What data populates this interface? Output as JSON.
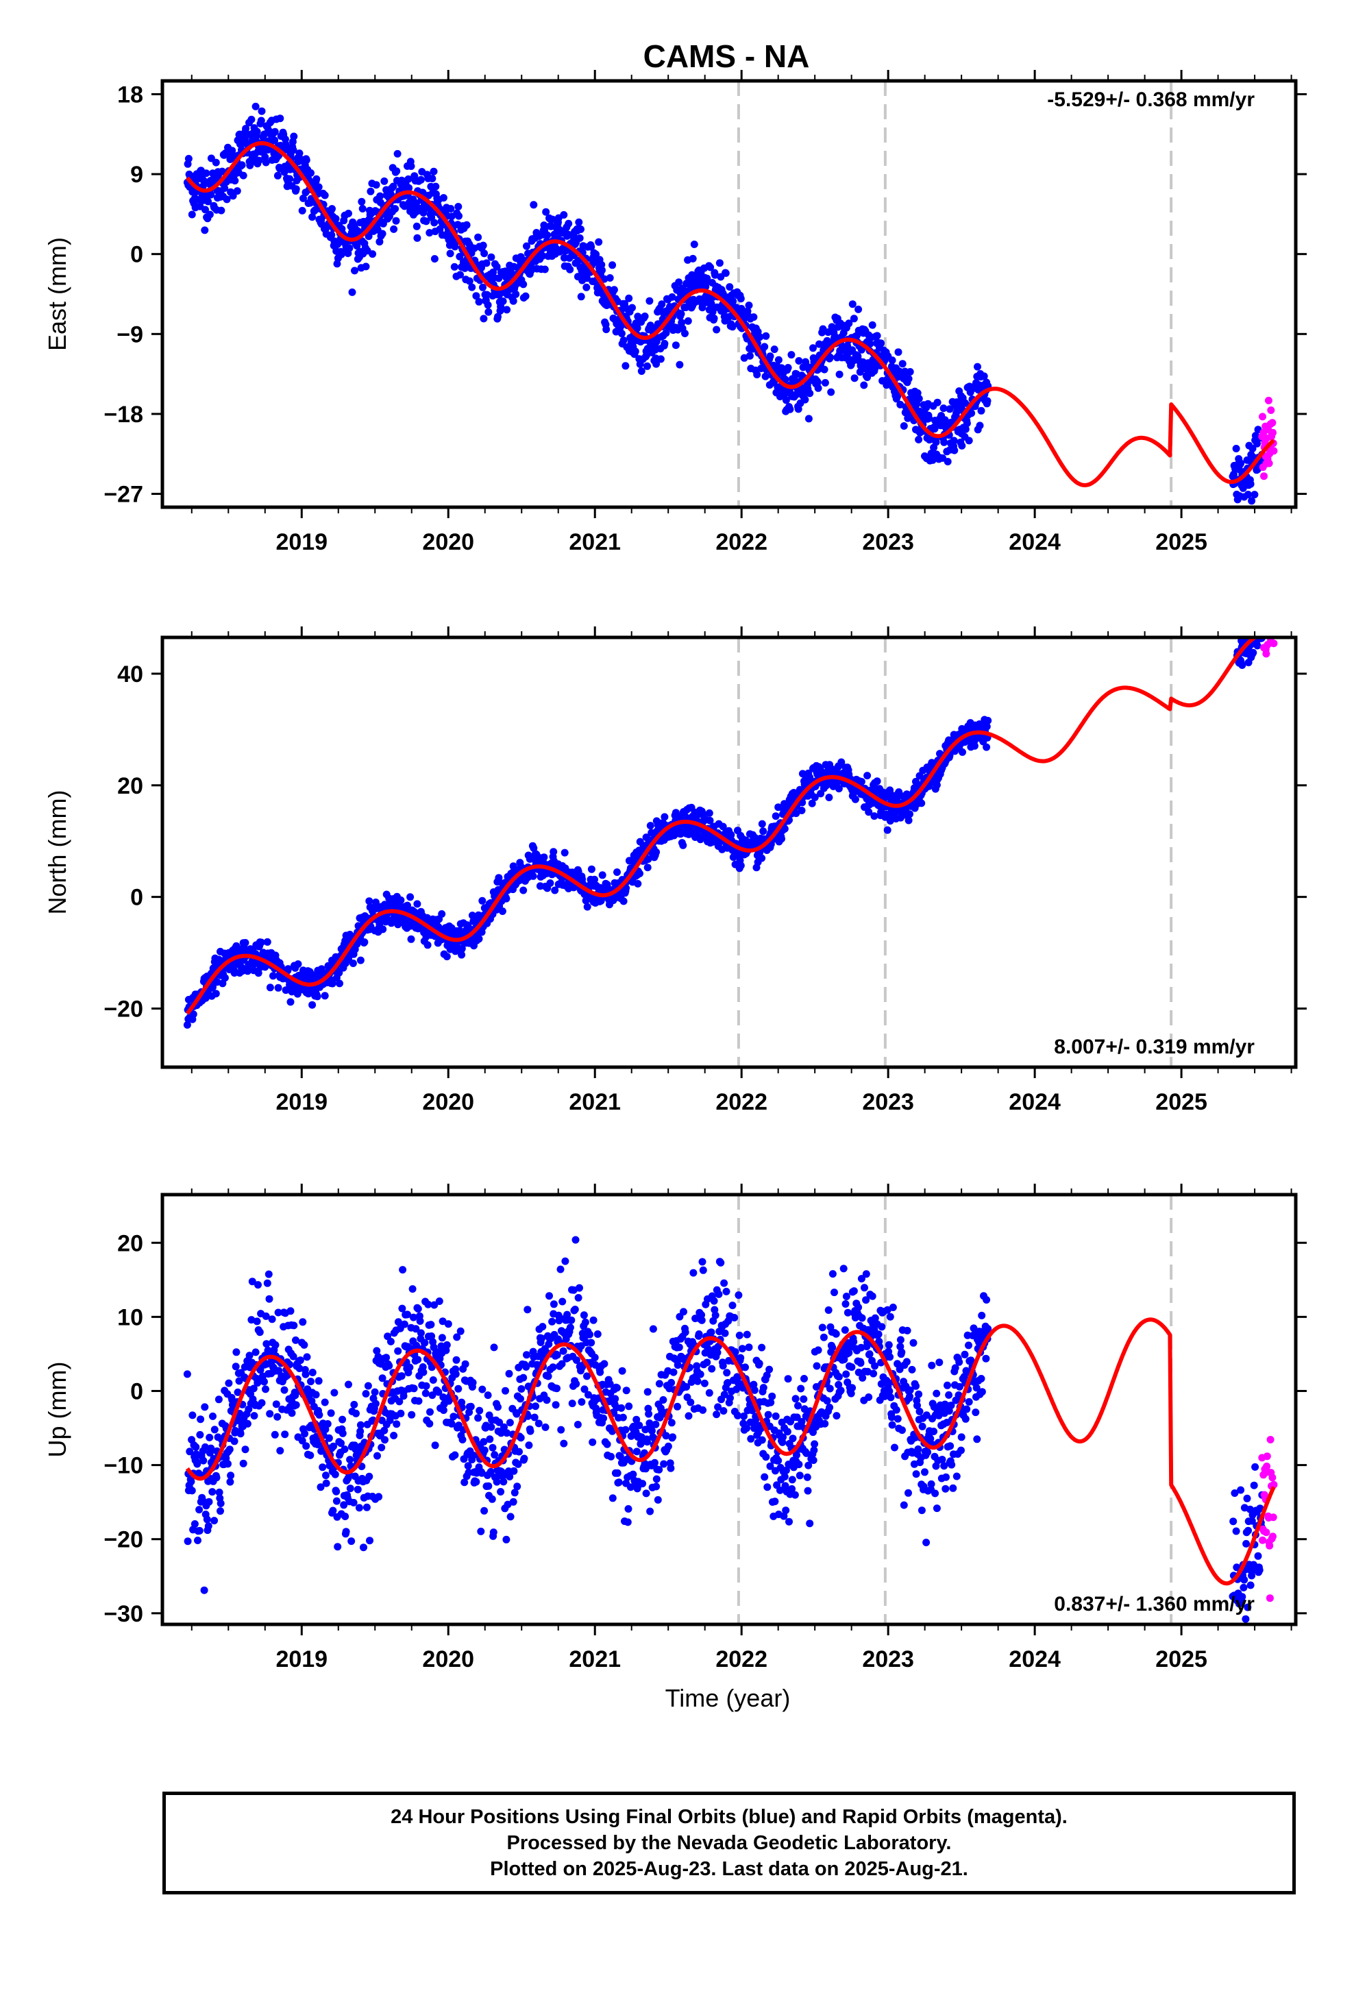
{
  "title": "CAMS - NA",
  "xlabel": "Time (year)",
  "footer": {
    "line1": "24 Hour Positions Using Final Orbits (blue) and Rapid Orbits (magenta).",
    "line2": "Processed by the Nevada Geodetic Laboratory.",
    "line3": "Plotted on 2025-Aug-23. Last data on 2025-Aug-21."
  },
  "colors": {
    "final": "#0000ff",
    "rapid": "#ff00ff",
    "model": "#ff0000",
    "equipment_change": "#c8c8c8",
    "axes": "#000000"
  },
  "chart_data": [
    {
      "type": "scatter",
      "ylabel": "East (mm)",
      "rate_label": "-5.529+/- 0.368 mm/yr",
      "xlim": [
        2018.05,
        2025.78
      ],
      "ylim": [
        -28.5,
        19.5
      ],
      "x_ticks": [
        2019,
        2020,
        2021,
        2022,
        2023,
        2024,
        2025
      ],
      "y_ticks": [
        18,
        9,
        0,
        -9,
        -18,
        -27
      ],
      "equipment_changes": [
        2021.98,
        2022.98,
        2024.93
      ],
      "data_span": [
        2018.22,
        2023.68
      ],
      "rapid_span": [
        2025.55,
        2025.63
      ],
      "model": {
        "trend_at_2018_2": 12.0,
        "rate_mm_per_yr": -5.529,
        "annual_amplitude": 3.8,
        "annual_peak": 2018.8,
        "semiannual_amplitude": 0.4,
        "semiannual_peak": 2018.6,
        "offset_at_2024_93": 5.9
      },
      "scatter_sd": 1.7,
      "series": [
        {
          "name": "Final Orbits",
          "x_range": [
            2018.22,
            2023.68
          ],
          "n_points": 1700
        },
        {
          "name": "Rapid Orbits",
          "x_range": [
            2025.55,
            2025.63
          ],
          "n_points": 26
        },
        {
          "name": "Model",
          "x_range": [
            2018.22,
            2025.63
          ]
        }
      ],
      "extra_data": [
        {
          "x_range": [
            2025.35,
            2025.55
          ],
          "n_points": 60
        }
      ]
    },
    {
      "type": "scatter",
      "ylabel": "North (mm)",
      "rate_label": "8.007+/- 0.319 mm/yr",
      "xlim": [
        2018.05,
        2025.78
      ],
      "ylim": [
        -30.5,
        46.5
      ],
      "x_ticks": [
        2019,
        2020,
        2021,
        2022,
        2023,
        2024,
        2025
      ],
      "y_ticks": [
        40,
        20,
        0,
        -20
      ],
      "equipment_changes": [
        2021.98,
        2022.98,
        2024.93
      ],
      "data_span": [
        2018.22,
        2023.68
      ],
      "rapid_span": [
        2025.55,
        2025.63
      ],
      "model": {
        "trend_at_2018_2": -18.0,
        "rate_mm_per_yr": 8.007,
        "annual_amplitude": 4.5,
        "annual_peak": 2018.58,
        "semiannual_amplitude": 0.3,
        "semiannual_peak": 2018.4,
        "offset_at_2024_93": 2.0
      },
      "scatter_sd": 1.4,
      "series": [
        {
          "name": "Final Orbits",
          "x_range": [
            2018.22,
            2023.68
          ],
          "n_points": 1700
        },
        {
          "name": "Rapid Orbits",
          "x_range": [
            2025.55,
            2025.63
          ],
          "n_points": 26
        },
        {
          "name": "Model",
          "x_range": [
            2018.22,
            2025.63
          ]
        }
      ],
      "extra_data": [
        {
          "x_range": [
            2025.38,
            2025.55
          ],
          "n_points": 60
        }
      ]
    },
    {
      "type": "scatter",
      "ylabel": "Up (mm)",
      "rate_label": "0.837+/- 1.360 mm/yr",
      "xlim": [
        2018.05,
        2025.78
      ],
      "ylim": [
        -31.5,
        26.5
      ],
      "x_ticks": [
        2019,
        2020,
        2021,
        2022,
        2023,
        2024,
        2025
      ],
      "y_ticks": [
        20,
        10,
        0,
        -10,
        -20,
        -30
      ],
      "equipment_changes": [
        2021.98,
        2022.98,
        2024.93
      ],
      "data_span": [
        2018.22,
        2023.68
      ],
      "rapid_span": [
        2025.55,
        2025.63
      ],
      "model": {
        "trend_at_2018_2": -3.5,
        "rate_mm_per_yr": 0.837,
        "annual_amplitude": 8.0,
        "annual_peak": 2018.8,
        "semiannual_amplitude": 0.5,
        "semiannual_peak": 2018.6,
        "offset_at_2024_93": -20.0
      },
      "scatter_sd": 4.5,
      "series": [
        {
          "name": "Final Orbits",
          "x_range": [
            2018.22,
            2023.68
          ],
          "n_points": 1700
        },
        {
          "name": "Rapid Orbits",
          "x_range": [
            2025.55,
            2025.63
          ],
          "n_points": 26
        },
        {
          "name": "Model",
          "x_range": [
            2018.22,
            2025.63
          ]
        }
      ],
      "extra_data": [
        {
          "x_range": [
            2025.35,
            2025.55
          ],
          "n_points": 60
        }
      ]
    }
  ]
}
